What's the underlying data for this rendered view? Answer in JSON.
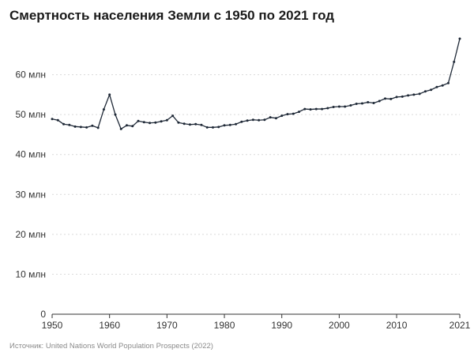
{
  "title": "Смертность населения Земли с 1950 по 2021 год",
  "source": "Источник: United Nations World Population Prospects (2022)",
  "chart_data": {
    "type": "line",
    "title": "Смертность населения Земли с 1950 по 2021 год",
    "xlabel": "",
    "ylabel": "",
    "xlim": [
      1950,
      2021
    ],
    "ylim": [
      0,
      70
    ],
    "grid": true,
    "line_color": "#1f2937",
    "grid_color": "#d9d9d9",
    "y_ticks": [
      {
        "value": 0,
        "label": "0"
      },
      {
        "value": 10,
        "label": "10 млн"
      },
      {
        "value": 20,
        "label": "20 млн"
      },
      {
        "value": 30,
        "label": "30 млн"
      },
      {
        "value": 40,
        "label": "40 млн"
      },
      {
        "value": 50,
        "label": "50 млн"
      },
      {
        "value": 60,
        "label": "60 млн"
      }
    ],
    "x_ticks": [
      {
        "value": 1950,
        "label": "1950"
      },
      {
        "value": 1960,
        "label": "1960"
      },
      {
        "value": 1970,
        "label": "1970"
      },
      {
        "value": 1980,
        "label": "1980"
      },
      {
        "value": 1990,
        "label": "1990"
      },
      {
        "value": 2000,
        "label": "2000"
      },
      {
        "value": 2010,
        "label": "2010"
      },
      {
        "value": 2021,
        "label": "2021"
      }
    ],
    "series": [
      {
        "x": [
          1950,
          1951,
          1952,
          1953,
          1954,
          1955,
          1956,
          1957,
          1958,
          1959,
          1960,
          1961,
          1962,
          1963,
          1964,
          1965,
          1966,
          1967,
          1968,
          1969,
          1970,
          1971,
          1972,
          1973,
          1974,
          1975,
          1976,
          1977,
          1978,
          1979,
          1980,
          1981,
          1982,
          1983,
          1984,
          1985,
          1986,
          1987,
          1988,
          1989,
          1990,
          1991,
          1992,
          1993,
          1994,
          1995,
          1996,
          1997,
          1998,
          1999,
          2000,
          2001,
          2002,
          2003,
          2004,
          2005,
          2006,
          2007,
          2008,
          2009,
          2010,
          2011,
          2012,
          2013,
          2014,
          2015,
          2016,
          2017,
          2018,
          2019,
          2020,
          2021
        ],
        "values": [
          48.9,
          48.6,
          47.6,
          47.4,
          47.0,
          46.9,
          46.8,
          47.2,
          46.7,
          51.3,
          55.0,
          50.0,
          46.4,
          47.3,
          47.1,
          48.4,
          48.1,
          47.9,
          48.0,
          48.3,
          48.6,
          49.7,
          48.0,
          47.7,
          47.5,
          47.6,
          47.4,
          46.8,
          46.8,
          46.9,
          47.3,
          47.4,
          47.6,
          48.2,
          48.5,
          48.7,
          48.6,
          48.7,
          49.3,
          49.1,
          49.7,
          50.1,
          50.2,
          50.7,
          51.4,
          51.3,
          51.4,
          51.4,
          51.6,
          51.9,
          52.0,
          52.0,
          52.3,
          52.7,
          52.8,
          53.1,
          52.9,
          53.4,
          54.0,
          53.9,
          54.4,
          54.5,
          54.8,
          55.0,
          55.2,
          55.8,
          56.2,
          56.9,
          57.3,
          57.9,
          63.2,
          69.0
        ]
      }
    ]
  }
}
